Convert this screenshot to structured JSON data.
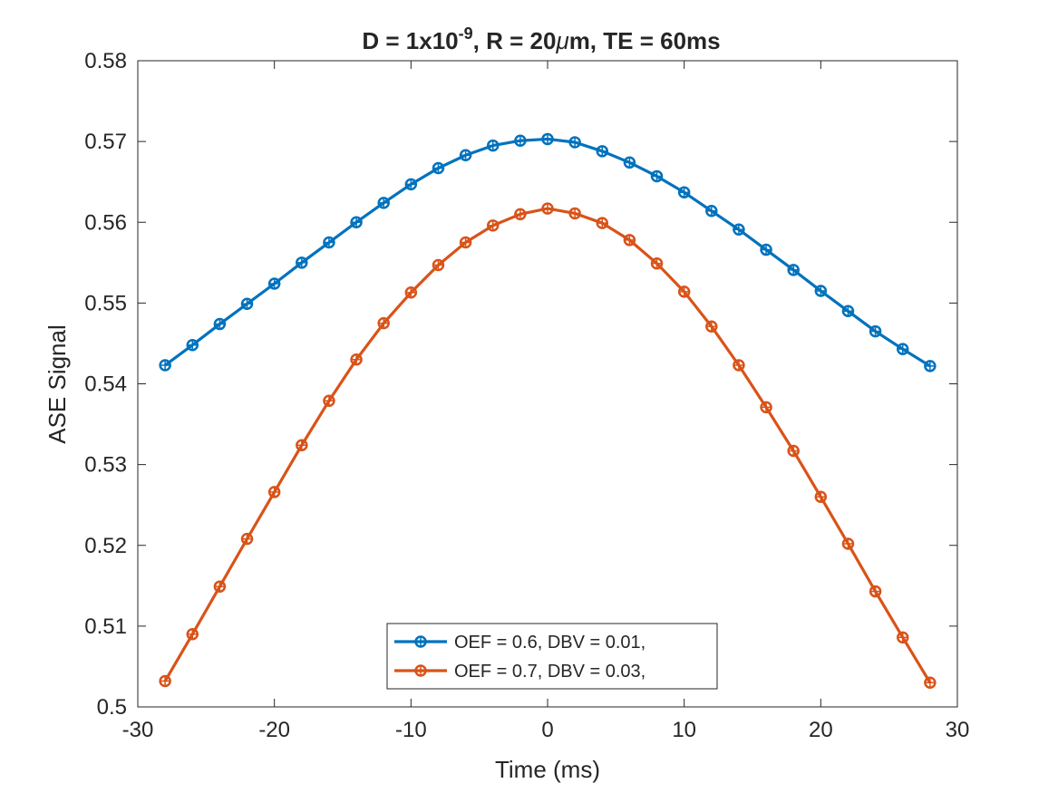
{
  "chart_data": {
    "type": "line",
    "title": {
      "prefix": "D = 1x10",
      "exponent": "-9",
      "middle": ", R = 20",
      "mu": "μ",
      "suffix": "m,  TE = 60ms"
    },
    "xlabel": "Time (ms)",
    "ylabel": "ASE Signal",
    "xlim": [
      -30,
      30
    ],
    "ylim": [
      0.5,
      0.58
    ],
    "xticks": [
      -30,
      -20,
      -10,
      0,
      10,
      20,
      30
    ],
    "xtick_labels": [
      "-30",
      "-20",
      "-10",
      "0",
      "10",
      "20",
      "30"
    ],
    "yticks": [
      0.5,
      0.51,
      0.52,
      0.53,
      0.54,
      0.55,
      0.56,
      0.57,
      0.58
    ],
    "ytick_labels": [
      "0.5",
      "0.51",
      "0.52",
      "0.53",
      "0.54",
      "0.55",
      "0.56",
      "0.57",
      "0.58"
    ],
    "grid": false,
    "legend_position": "bottom-center",
    "x": [
      -28,
      -26,
      -24,
      -22,
      -20,
      -18,
      -16,
      -14,
      -12,
      -10,
      -8,
      -6,
      -4,
      -2,
      0,
      2,
      4,
      6,
      8,
      10,
      12,
      14,
      16,
      18,
      20,
      22,
      24,
      26,
      28
    ],
    "series": [
      {
        "name": "OEF = 0.6, DBV = 0.01,",
        "color": "#0072BD",
        "values": [
          0.5423,
          0.5448,
          0.5474,
          0.5499,
          0.5524,
          0.555,
          0.5575,
          0.56,
          0.5624,
          0.5647,
          0.5667,
          0.5683,
          0.5695,
          0.5701,
          0.5703,
          0.5699,
          0.5688,
          0.5674,
          0.5657,
          0.5637,
          0.5614,
          0.5591,
          0.5566,
          0.5541,
          0.5515,
          0.549,
          0.5465,
          0.5443,
          0.5422
        ]
      },
      {
        "name": "OEF = 0.7, DBV = 0.03,",
        "color": "#D95319",
        "values": [
          0.5032,
          0.509,
          0.5149,
          0.5208,
          0.5266,
          0.5324,
          0.5379,
          0.543,
          0.5475,
          0.5513,
          0.5547,
          0.5575,
          0.5596,
          0.561,
          0.5617,
          0.5611,
          0.5599,
          0.5578,
          0.5549,
          0.5514,
          0.5471,
          0.5423,
          0.5371,
          0.5317,
          0.526,
          0.5202,
          0.5143,
          0.5086,
          0.503
        ]
      }
    ]
  }
}
